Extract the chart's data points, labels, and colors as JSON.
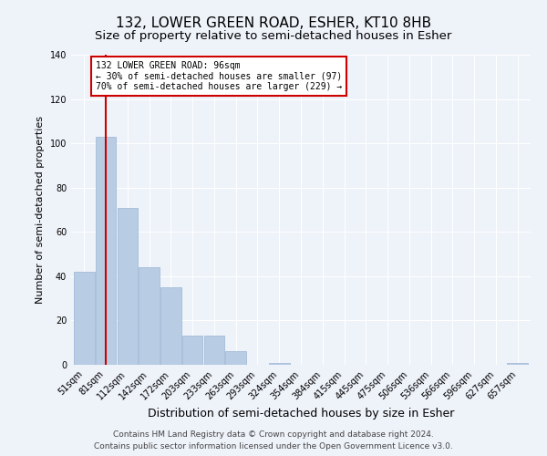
{
  "title": "132, LOWER GREEN ROAD, ESHER, KT10 8HB",
  "subtitle": "Size of property relative to semi-detached houses in Esher",
  "xlabel": "Distribution of semi-detached houses by size in Esher",
  "ylabel": "Number of semi-detached properties",
  "categories": [
    "51sqm",
    "81sqm",
    "112sqm",
    "142sqm",
    "172sqm",
    "203sqm",
    "233sqm",
    "263sqm",
    "293sqm",
    "324sqm",
    "354sqm",
    "384sqm",
    "415sqm",
    "445sqm",
    "475sqm",
    "506sqm",
    "536sqm",
    "566sqm",
    "596sqm",
    "627sqm",
    "657sqm"
  ],
  "values": [
    42,
    103,
    71,
    44,
    35,
    13,
    13,
    6,
    0,
    1,
    0,
    0,
    0,
    0,
    0,
    0,
    0,
    0,
    0,
    0,
    1
  ],
  "bar_color": "#b8cce4",
  "bar_edge_color": "#9ab5d4",
  "property_line_x": 1.0,
  "property_line_color": "#cc0000",
  "annotation_line1": "132 LOWER GREEN ROAD: 96sqm",
  "annotation_line2": "← 30% of semi-detached houses are smaller (97)",
  "annotation_line3": "70% of semi-detached houses are larger (229) →",
  "annotation_box_color": "#cc0000",
  "annotation_box_bg": "#ffffff",
  "ylim": [
    0,
    140
  ],
  "yticks": [
    0,
    20,
    40,
    60,
    80,
    100,
    120,
    140
  ],
  "footnote1": "Contains HM Land Registry data © Crown copyright and database right 2024.",
  "footnote2": "Contains public sector information licensed under the Open Government Licence v3.0.",
  "background_color": "#eef2f9",
  "title_fontsize": 11,
  "subtitle_fontsize": 9.5,
  "xlabel_fontsize": 9,
  "ylabel_fontsize": 8,
  "tick_fontsize": 7,
  "footnote_fontsize": 6.5
}
